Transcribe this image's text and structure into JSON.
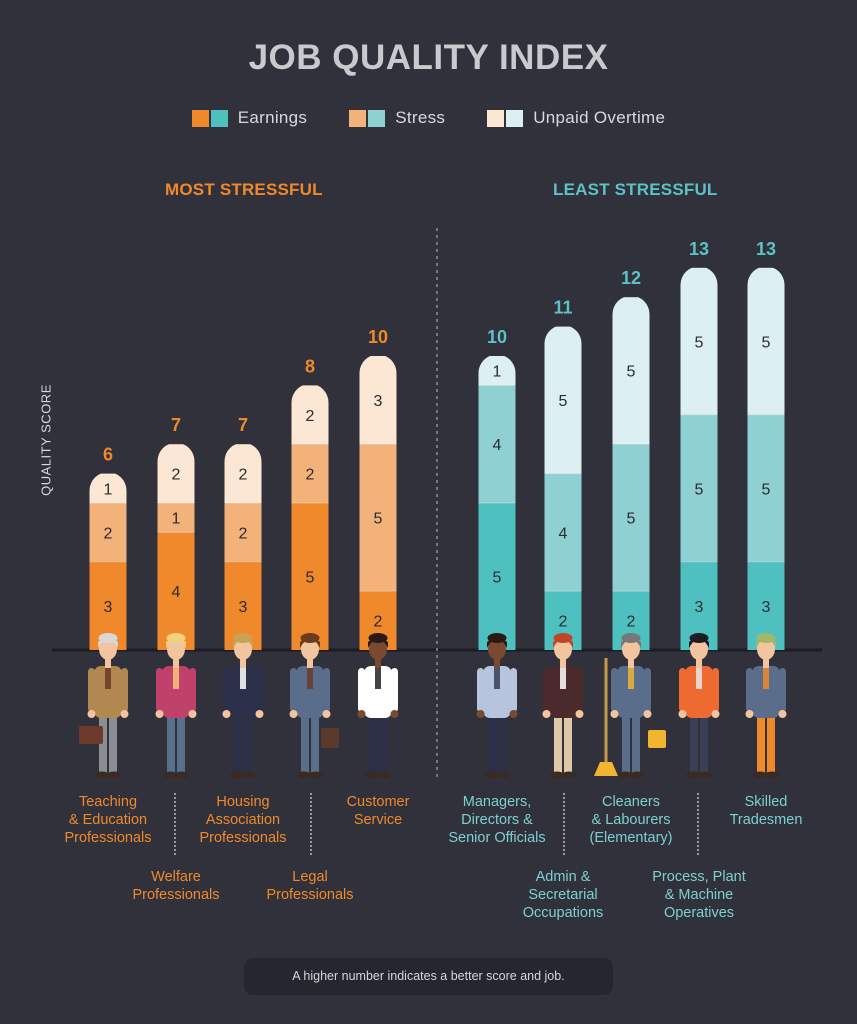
{
  "title": "JOB QUALITY INDEX",
  "legend": [
    {
      "label": "Earnings",
      "colors": [
        "#f0892c",
        "#4fc0c0"
      ]
    },
    {
      "label": "Stress",
      "colors": [
        "#f4b27b",
        "#8fd1d3"
      ]
    },
    {
      "label": "Unpaid Overtime",
      "colors": [
        "#fbe7d4",
        "#dcf0f1"
      ]
    }
  ],
  "groups": {
    "most_stressful": {
      "label": "MOST STRESSFUL",
      "color": "#f0892c"
    },
    "least_stressful": {
      "label": "LEAST STRESSFUL",
      "color": "#5cc2c4"
    }
  },
  "ylabel": "QUALITY SCORE",
  "footnote": "A higher number indicates a better score and job.",
  "chart_data": {
    "type": "bar",
    "stacked": true,
    "ylabel": "QUALITY SCORE",
    "categories": [
      "Teaching & Education Professionals",
      "Welfare Professionals",
      "Housing Association Professionals",
      "Legal Professionals",
      "Customer Service",
      "Managers, Directors & Senior Officials",
      "Admin & Secretarial Occupations",
      "Cleaners & Labourers (Elementary)",
      "Process, Plant & Machine Operatives",
      "Skilled Tradesmen"
    ],
    "groups": [
      "MOST STRESSFUL",
      "MOST STRESSFUL",
      "MOST STRESSFUL",
      "MOST STRESSFUL",
      "MOST STRESSFUL",
      "LEAST STRESSFUL",
      "LEAST STRESSFUL",
      "LEAST STRESSFUL",
      "LEAST STRESSFUL",
      "LEAST STRESSFUL"
    ],
    "series": [
      {
        "name": "Earnings",
        "values": [
          3,
          4,
          3,
          5,
          2,
          5,
          2,
          2,
          3,
          3
        ]
      },
      {
        "name": "Stress",
        "values": [
          2,
          1,
          2,
          2,
          5,
          4,
          4,
          5,
          5,
          5
        ]
      },
      {
        "name": "Unpaid Overtime",
        "values": [
          1,
          2,
          2,
          2,
          3,
          1,
          5,
          5,
          5,
          5
        ]
      }
    ],
    "totals": [
      6,
      7,
      7,
      8,
      10,
      10,
      11,
      12,
      13,
      13
    ],
    "ylim": [
      0,
      13
    ],
    "grid": false,
    "legend_position": "top"
  },
  "job_labels": [
    [
      "Teaching",
      "& Education",
      "Professionals"
    ],
    [
      "Welfare",
      "Professionals"
    ],
    [
      "Housing",
      "Association",
      "Professionals"
    ],
    [
      "Legal",
      "Professionals"
    ],
    [
      "Customer",
      "Service"
    ],
    [
      "Managers,",
      "Directors &",
      "Senior Officials"
    ],
    [
      "Admin &",
      "Secretarial",
      "Occupations"
    ],
    [
      "Cleaners",
      "& Labourers",
      "(Elementary)"
    ],
    [
      "Process, Plant",
      "& Machine",
      "Operatives"
    ],
    [
      "Skilled",
      "Tradesmen"
    ]
  ],
  "figures": [
    {
      "name": "teacher-figure",
      "skin": "#f2c4a0",
      "hair": "#d8d8d8",
      "top": "#b08850",
      "bottom": "#8a8d91",
      "accent": "#6b3a2a"
    },
    {
      "name": "welfare-worker-figure",
      "skin": "#f2c4a0",
      "hair": "#f0d27a",
      "top": "#c0426a",
      "bottom": "#5a6f8a",
      "accent": "#f3c57a"
    },
    {
      "name": "housing-professional-figure",
      "skin": "#f2c4a0",
      "hair": "#c9a254",
      "top": "#2b2f4a",
      "bottom": "#2b2f4a",
      "accent": "#ffffff"
    },
    {
      "name": "lawyer-figure",
      "skin": "#f2c4a0",
      "hair": "#6b3a1f",
      "top": "#5a6e8c",
      "bottom": "#5a6e8c",
      "accent": "#6b3a2a"
    },
    {
      "name": "customer-service-figure",
      "skin": "#7a4a30",
      "hair": "#2a1a14",
      "top": "#ffffff",
      "bottom": "#2b2f4a",
      "accent": "#222222"
    },
    {
      "name": "manager-figure",
      "skin": "#7a4a30",
      "hair": "#2a1a14",
      "top": "#b7c4dd",
      "bottom": "#2b2f4a",
      "accent": "#3a3f55"
    },
    {
      "name": "admin-figure",
      "skin": "#f2c4a0",
      "hair": "#c0442a",
      "top": "#4a2a2a",
      "bottom": "#e0c7a8",
      "accent": "#ffffff"
    },
    {
      "name": "cleaner-figure",
      "skin": "#f2c4a0",
      "hair": "#777777",
      "top": "#5a6e8c",
      "bottom": "#5a6e8c",
      "accent": "#f2b530"
    },
    {
      "name": "machine-operative-figure",
      "skin": "#f2c4a0",
      "hair": "#1c1c24",
      "top": "#ee6a30",
      "bottom": "#3a3f55",
      "accent": "#e8e8e8"
    },
    {
      "name": "tradesman-figure",
      "skin": "#f2c4a0",
      "hair": "#9fb86a",
      "top": "#5a6e8c",
      "bottom": "#ee8a2c",
      "accent": "#ee8a2c"
    }
  ],
  "colors": {
    "orange": {
      "earnings": "#f0892c",
      "stress": "#f4b27b",
      "overtime": "#fbe7d4",
      "total": "#f0892c",
      "label": "#f0892c"
    },
    "teal": {
      "earnings": "#4fc0c0",
      "stress": "#8fd1d3",
      "overtime": "#dcf0f1",
      "total": "#5cc2c4",
      "label": "#7dd0d2"
    }
  }
}
